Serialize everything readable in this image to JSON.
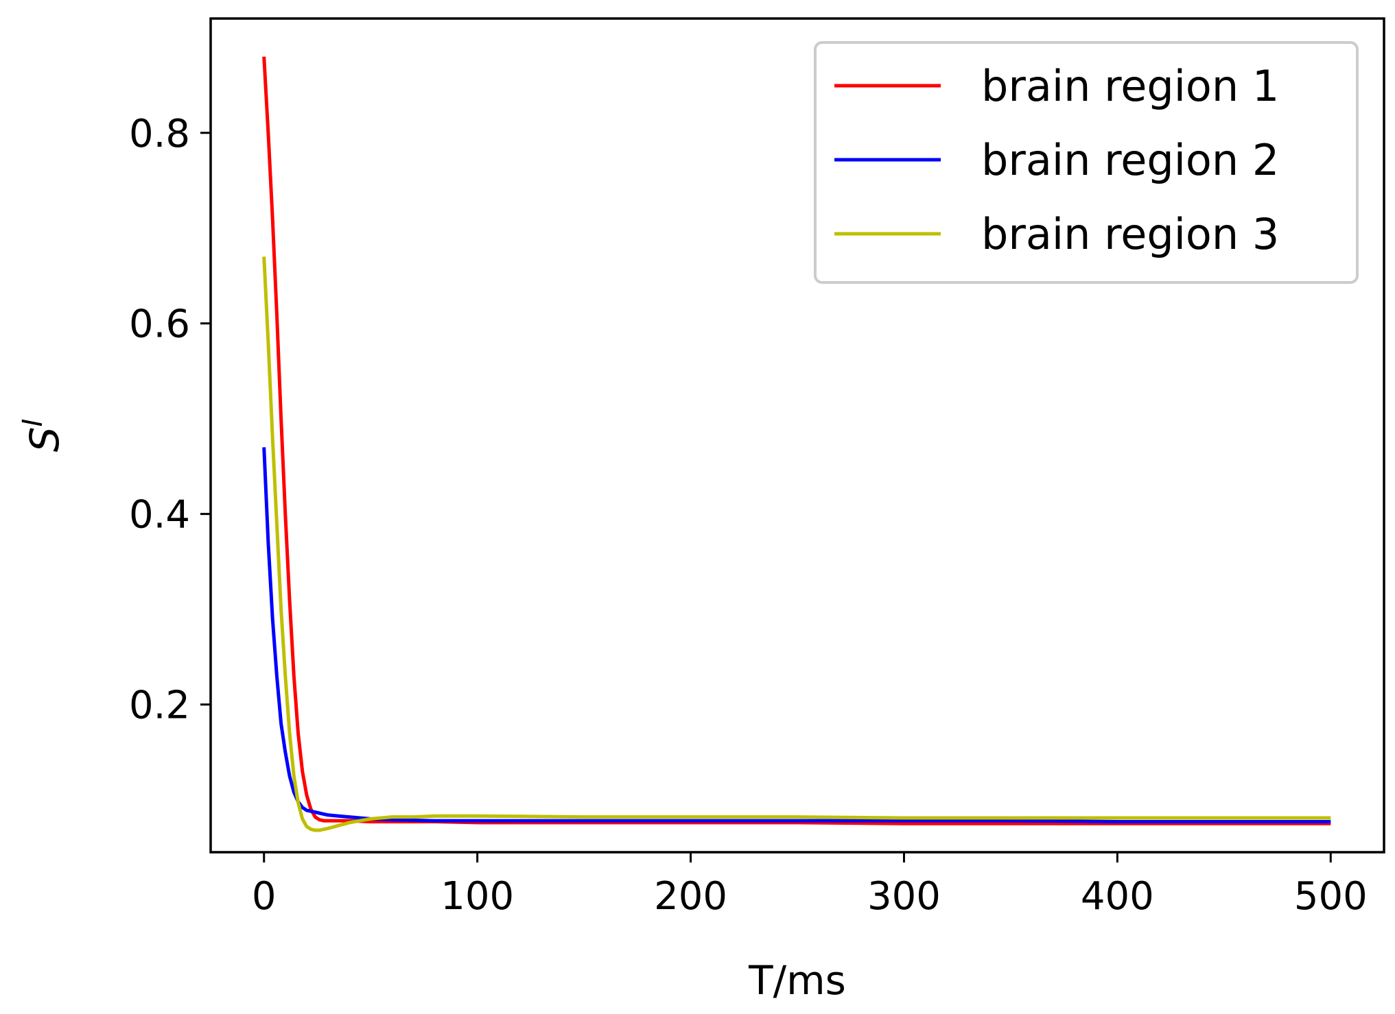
{
  "chart_data": {
    "type": "line",
    "xlabel": "T/ms",
    "ylabel_base": "S",
    "ylabel_sup": "I",
    "xlim": [
      -25,
      525
    ],
    "ylim": [
      0.045,
      0.92
    ],
    "xticks": [
      0,
      100,
      200,
      300,
      400,
      500
    ],
    "xtick_labels": [
      "0",
      "100",
      "200",
      "300",
      "400",
      "500"
    ],
    "yticks": [
      0.2,
      0.4,
      0.6,
      0.8
    ],
    "ytick_labels": [
      "0.2",
      "0.4",
      "0.6",
      "0.8"
    ],
    "grid": false,
    "legend_position": "top-right",
    "series": [
      {
        "name": "brain region 1",
        "color": "#ff0000",
        "x": [
          0,
          2,
          4,
          6,
          8,
          10,
          12,
          14,
          16,
          18,
          20,
          22,
          24,
          26,
          28,
          30,
          35,
          40,
          50,
          60,
          80,
          100,
          150,
          200,
          250,
          300,
          350,
          400,
          450,
          500
        ],
        "y": [
          0.88,
          0.8,
          0.71,
          0.61,
          0.5,
          0.4,
          0.31,
          0.23,
          0.17,
          0.13,
          0.105,
          0.09,
          0.082,
          0.079,
          0.078,
          0.078,
          0.078,
          0.078,
          0.077,
          0.077,
          0.077,
          0.076,
          0.076,
          0.076,
          0.076,
          0.075,
          0.075,
          0.075,
          0.075,
          0.075
        ]
      },
      {
        "name": "brain region 2",
        "color": "#0000ff",
        "x": [
          0,
          2,
          4,
          6,
          8,
          10,
          12,
          14,
          16,
          18,
          20,
          22,
          24,
          26,
          28,
          30,
          35,
          40,
          50,
          60,
          80,
          100,
          150,
          200,
          250,
          300,
          350,
          400,
          450,
          500
        ],
        "y": [
          0.47,
          0.37,
          0.29,
          0.23,
          0.18,
          0.15,
          0.125,
          0.108,
          0.098,
          0.092,
          0.089,
          0.088,
          0.087,
          0.086,
          0.085,
          0.084,
          0.083,
          0.082,
          0.08,
          0.079,
          0.078,
          0.078,
          0.078,
          0.078,
          0.078,
          0.078,
          0.078,
          0.077,
          0.077,
          0.077
        ]
      },
      {
        "name": "brain region 3",
        "color": "#bfbf00",
        "x": [
          0,
          2,
          4,
          6,
          8,
          10,
          12,
          14,
          16,
          18,
          20,
          22,
          24,
          26,
          28,
          30,
          35,
          40,
          45,
          50,
          55,
          60,
          70,
          80,
          100,
          150,
          200,
          250,
          300,
          350,
          400,
          450,
          500
        ],
        "y": [
          0.67,
          0.58,
          0.48,
          0.39,
          0.3,
          0.23,
          0.17,
          0.125,
          0.097,
          0.08,
          0.072,
          0.069,
          0.068,
          0.068,
          0.069,
          0.07,
          0.073,
          0.076,
          0.078,
          0.08,
          0.081,
          0.082,
          0.082,
          0.083,
          0.083,
          0.082,
          0.082,
          0.082,
          0.081,
          0.081,
          0.081,
          0.081,
          0.081
        ]
      }
    ]
  }
}
